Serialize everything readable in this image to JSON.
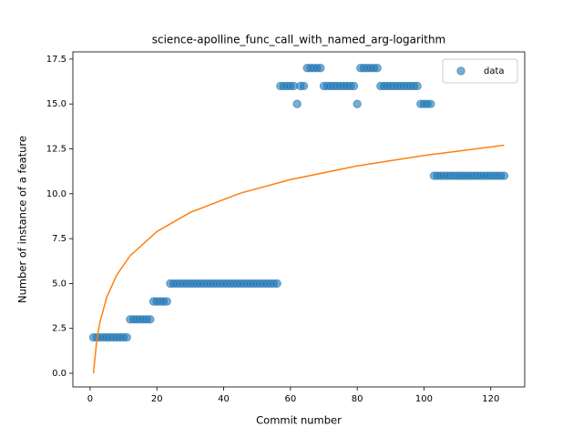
{
  "chart_data": {
    "type": "scatter",
    "title": "science-apolline_func_call_with_named_arg-logarithm",
    "x_label": "Commit number",
    "y_label": "Number of instance of a feature",
    "xlim": [
      -5.15,
      130.15
    ],
    "ylim": [
      -0.76,
      17.9
    ],
    "xticks": [
      0,
      20,
      40,
      60,
      80,
      100,
      120
    ],
    "yticks": [
      {
        "value": 0,
        "label": "0.0"
      },
      2.5,
      {
        "value": 5,
        "label": "5.0"
      },
      7.5,
      {
        "value": 10,
        "label": "10.0"
      },
      12.5,
      {
        "value": 15,
        "label": "15.0"
      },
      17.5
    ],
    "legend_position": "upper right",
    "series": [
      {
        "name": "data",
        "color": "#1f77b4",
        "type": "scatter",
        "x": [
          1,
          2,
          3,
          4,
          5,
          6,
          7,
          8,
          9,
          10,
          11,
          12,
          13,
          14,
          15,
          16,
          17,
          18,
          19,
          20,
          21,
          22,
          23,
          24,
          25,
          26,
          27,
          28,
          29,
          30,
          31,
          32,
          33,
          34,
          35,
          36,
          37,
          38,
          39,
          40,
          41,
          42,
          43,
          44,
          45,
          46,
          47,
          48,
          49,
          50,
          51,
          52,
          53,
          54,
          55,
          56,
          57,
          58,
          59,
          60,
          61,
          62,
          63,
          64,
          65,
          66,
          67,
          68,
          69,
          70,
          71,
          72,
          73,
          74,
          75,
          76,
          77,
          78,
          79,
          80,
          81,
          82,
          83,
          84,
          85,
          86,
          87,
          88,
          89,
          90,
          91,
          92,
          93,
          94,
          95,
          96,
          97,
          98,
          99,
          100,
          101,
          102,
          103,
          104,
          105,
          106,
          107,
          108,
          109,
          110,
          111,
          112,
          113,
          114,
          115,
          116,
          117,
          118,
          119,
          120,
          121,
          122,
          123,
          124
        ],
        "values": [
          2,
          2,
          2,
          2,
          2,
          2,
          2,
          2,
          2,
          2,
          2,
          3,
          3,
          3,
          3,
          3,
          3,
          3,
          4,
          4,
          4,
          4,
          4,
          5,
          5,
          5,
          5,
          5,
          5,
          5,
          5,
          5,
          5,
          5,
          5,
          5,
          5,
          5,
          5,
          5,
          5,
          5,
          5,
          5,
          5,
          5,
          5,
          5,
          5,
          5,
          5,
          5,
          5,
          5,
          5,
          5,
          16,
          16,
          16,
          16,
          16,
          15,
          16,
          16,
          17,
          17,
          17,
          17,
          17,
          16,
          16,
          16,
          16,
          16,
          16,
          16,
          16,
          16,
          16,
          15,
          17,
          17,
          17,
          17,
          17,
          17,
          16,
          16,
          16,
          16,
          16,
          16,
          16,
          16,
          16,
          16,
          16,
          16,
          15,
          15,
          15,
          15,
          11,
          11,
          11,
          11,
          11,
          11,
          11,
          11,
          11,
          11,
          11,
          11,
          11,
          11,
          11,
          11,
          11,
          11,
          11,
          11,
          11,
          11
        ]
      },
      {
        "color": "#ff7f0e",
        "type": "line",
        "x": [
          1,
          2,
          3,
          5,
          8,
          12,
          20,
          30,
          45,
          60,
          80,
          100,
          124
        ],
        "values": [
          0,
          1.83,
          2.89,
          4.24,
          5.48,
          6.55,
          7.89,
          8.96,
          10.03,
          10.79,
          11.55,
          12.13,
          12.7
        ]
      }
    ]
  }
}
